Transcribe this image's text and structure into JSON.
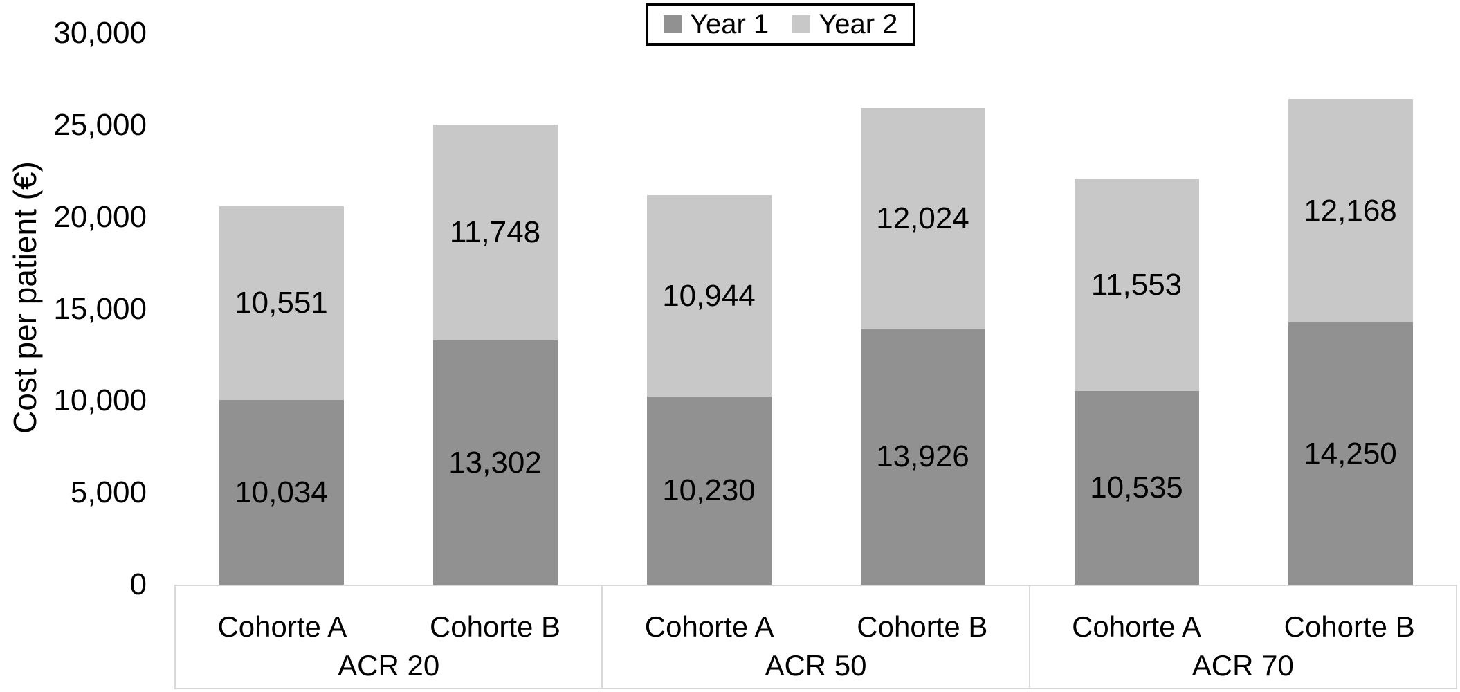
{
  "chart_data": {
    "type": "bar",
    "stacked": true,
    "title": "",
    "ylabel": "Cost per patient (€)",
    "xlabel": "",
    "ylim": [
      0,
      30000
    ],
    "ytick_interval": 5000,
    "ytick_labels": [
      "0",
      "5,000",
      "10,000",
      "15,000",
      "20,000",
      "25,000",
      "30,000"
    ],
    "grid": false,
    "legend_position": "top-center",
    "groups": [
      "ACR 20",
      "ACR 50",
      "ACR 70"
    ],
    "categories_per_group": [
      "Cohorte A",
      "Cohorte B"
    ],
    "series": [
      {
        "name": "Year 1",
        "color": "#919191",
        "values": [
          10034,
          13302,
          10230,
          13926,
          10535,
          14250
        ],
        "labels": [
          "10,034",
          "13,302",
          "10,230",
          "13,926",
          "10,535",
          "14,250"
        ]
      },
      {
        "name": "Year 2",
        "color": "#c8c8c8",
        "values": [
          10551,
          11748,
          10944,
          12024,
          11553,
          12168
        ],
        "labels": [
          "10,551",
          "11,748",
          "10,944",
          "12,024",
          "11,553",
          "12,168"
        ]
      }
    ],
    "colors": {
      "year1": "#919191",
      "year2": "#c8c8c8",
      "axis_box_border": "#d9d9d9",
      "legend_border": "#000000",
      "text": "#000000",
      "background": "#ffffff"
    }
  }
}
